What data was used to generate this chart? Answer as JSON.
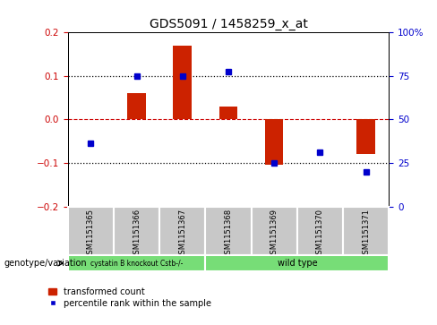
{
  "title": "GDS5091 / 1458259_x_at",
  "samples": [
    "GSM1151365",
    "GSM1151366",
    "GSM1151367",
    "GSM1151368",
    "GSM1151369",
    "GSM1151370",
    "GSM1151371"
  ],
  "red_bars": [
    0.0,
    0.06,
    0.17,
    0.03,
    -0.105,
    0.0,
    -0.08
  ],
  "blue_dots": [
    -0.055,
    0.1,
    0.1,
    0.11,
    -0.1,
    -0.075,
    -0.12
  ],
  "ylim_left": [
    -0.2,
    0.2
  ],
  "ylim_right": [
    0,
    100
  ],
  "ylabel_left_color": "#cc0000",
  "ylabel_right_color": "#0000cc",
  "bar_color": "#cc2200",
  "dot_color": "#0000cc",
  "hline_color": "#cc0000",
  "dotted_color": "black",
  "legend_bar_label": "transformed count",
  "legend_dot_label": "percentile rank within the sample",
  "genotype_label": "genotype/variation",
  "cell_color": "#c8c8c8",
  "group_color": "#77dd77",
  "yticks_left": [
    -0.2,
    -0.1,
    0.0,
    0.1,
    0.2
  ],
  "yticks_right": [
    0,
    25,
    50,
    75,
    100
  ],
  "group1_label": "cystatin B knockout Cstb-/-",
  "group2_label": "wild type",
  "group1_count": 3,
  "group2_count": 4
}
